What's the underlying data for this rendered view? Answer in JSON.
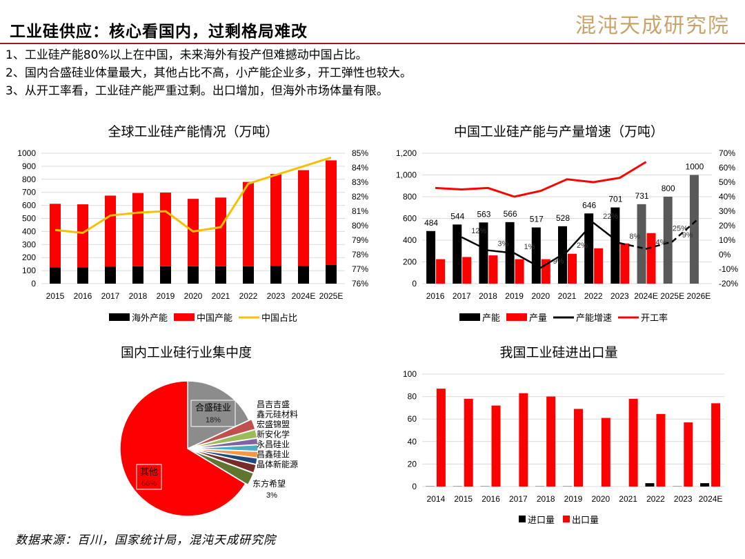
{
  "header": {
    "title": "工业硅供应：核心看国内，过剩格局难改",
    "logo": "混沌天成研究院"
  },
  "bullets": [
    "1、工业硅产能80%以上在中国，未来海外有投产但难撼动中国占比。",
    "2、国内合盛硅业体量最大，其他占比不高，小产能企业多，开工弹性也较大。",
    "3、从开工率看，工业硅产能严重过剩。出口增加，但海外市场体量有限。"
  ],
  "source": "数据来源：百川，国家统计局，混沌天成研究院",
  "chart_data": [
    {
      "type": "bar",
      "title": "全球工业硅产能情况（万吨）",
      "stacked": true,
      "categories": [
        "2015",
        "2016",
        "2017",
        "2018",
        "2019",
        "2020",
        "2021",
        "2022",
        "2023",
        "2024E",
        "2025E"
      ],
      "series": [
        {
          "name": "海外产能",
          "color": "#000000",
          "values": [
            125,
            125,
            130,
            133,
            133,
            133,
            133,
            133,
            135,
            135,
            143
          ]
        },
        {
          "name": "中国产能",
          "color": "#ff0000",
          "values": [
            487,
            483,
            545,
            562,
            565,
            517,
            527,
            647,
            705,
            735,
            802
          ]
        },
        {
          "name": "中国占比",
          "type": "line",
          "axis": "right",
          "color": "#f5c000",
          "values": [
            79.7,
            79.5,
            80.7,
            80.9,
            81.0,
            79.6,
            79.9,
            82.9,
            83.5,
            84.1,
            84.7
          ]
        }
      ],
      "ylim": [
        0,
        1000
      ],
      "yticks": [
        0,
        100,
        200,
        300,
        400,
        500,
        600,
        700,
        800,
        900,
        1000
      ],
      "y2lim": [
        76,
        85
      ],
      "y2ticks": [
        "76%",
        "77%",
        "78%",
        "79%",
        "80%",
        "81%",
        "82%",
        "83%",
        "84%",
        "85%"
      ],
      "grid": true,
      "legend": "bottom"
    },
    {
      "type": "bar",
      "title": "中国工业硅产能与产量增速（万吨）",
      "categories": [
        "2016",
        "2017",
        "2018",
        "2019",
        "2020",
        "2021",
        "2022",
        "2023",
        "2024E",
        "2025E",
        "2026E"
      ],
      "series": [
        {
          "name": "产能",
          "color": "#000000",
          "forecast_color": "#595959",
          "values": [
            484,
            544,
            563,
            566,
            517,
            528,
            646,
            701,
            731,
            800,
            1000
          ],
          "labels": [
            "484",
            "544",
            "563",
            "566",
            "517",
            "528",
            "646",
            "701",
            "731",
            "800",
            "1000"
          ]
        },
        {
          "name": "产量",
          "color": "#ff0000",
          "values": [
            225,
            245,
            260,
            225,
            225,
            275,
            325,
            370,
            465,
            null,
            null
          ]
        },
        {
          "name": "产能增速",
          "type": "line",
          "axis": "right",
          "color": "#000000",
          "values": [
            null,
            12,
            3,
            1,
            -9,
            2,
            22,
            8,
            4,
            9,
            25
          ],
          "labels": [
            "",
            "12%",
            "3%",
            "1%",
            "-9%",
            "2%",
            "22%",
            "8%",
            "4%",
            "9%",
            "25%"
          ]
        },
        {
          "name": "开工率",
          "type": "line",
          "axis": "right",
          "color": "#ff0000",
          "values": [
            46,
            45,
            46,
            40,
            44,
            52,
            50,
            53,
            64,
            null,
            null
          ]
        }
      ],
      "ylim": [
        0,
        1200
      ],
      "yticks": [
        "0",
        "200",
        "400",
        "600",
        "800",
        "1,000",
        "1,200"
      ],
      "y2lim": [
        -20,
        70
      ],
      "y2ticks": [
        "-20%",
        "-10%",
        "0%",
        "10%",
        "20%",
        "30%",
        "40%",
        "50%",
        "60%",
        "70%"
      ],
      "grid": true,
      "legend": "bottom"
    },
    {
      "type": "pie",
      "title": "国内工业硅行业集中度",
      "slices": [
        {
          "name": "合盛硅业",
          "value": 18,
          "label": "18%",
          "color": "#8c8c8c"
        },
        {
          "name": "昌吉吉盛",
          "value": 2.5,
          "color": "#c0504d"
        },
        {
          "name": "鑫元硅材料",
          "value": 2,
          "color": "#9bbb59"
        },
        {
          "name": "宏盛锦盟",
          "value": 1.5,
          "color": "#8064a2"
        },
        {
          "name": "新安化学",
          "value": 1.5,
          "color": "#4bacc6"
        },
        {
          "name": "永昌硅业",
          "value": 1.5,
          "color": "#f79646"
        },
        {
          "name": "昌鑫硅业",
          "value": 1.5,
          "color": "#1f497d"
        },
        {
          "name": "晶体新能源",
          "value": 2,
          "color": "#772c2a"
        },
        {
          "name": "东方希望",
          "value": 3,
          "label": "3%",
          "color": "#5f7530"
        },
        {
          "name": "其他",
          "value": 66,
          "label": "66%",
          "color": "#ff0000"
        }
      ]
    },
    {
      "type": "bar",
      "title": "我国工业硅进出口量",
      "categories": [
        "2014",
        "2015",
        "2016",
        "2017",
        "2018",
        "2019",
        "2020",
        "2021",
        "2022",
        "2023",
        "2024E"
      ],
      "series": [
        {
          "name": "进口量",
          "color": "#000000",
          "values": [
            0.2,
            0.2,
            0.2,
            0,
            0.2,
            0.2,
            0,
            0,
            3,
            0.2,
            3
          ]
        },
        {
          "name": "出口量",
          "color": "#ff0000",
          "values": [
            87,
            78,
            72,
            83,
            80,
            69,
            61,
            78,
            64.5,
            57,
            74
          ]
        }
      ],
      "ylim": [
        0,
        100
      ],
      "yticks": [
        0,
        20,
        40,
        60,
        80,
        100
      ],
      "grid": true,
      "legend": "bottom"
    }
  ]
}
